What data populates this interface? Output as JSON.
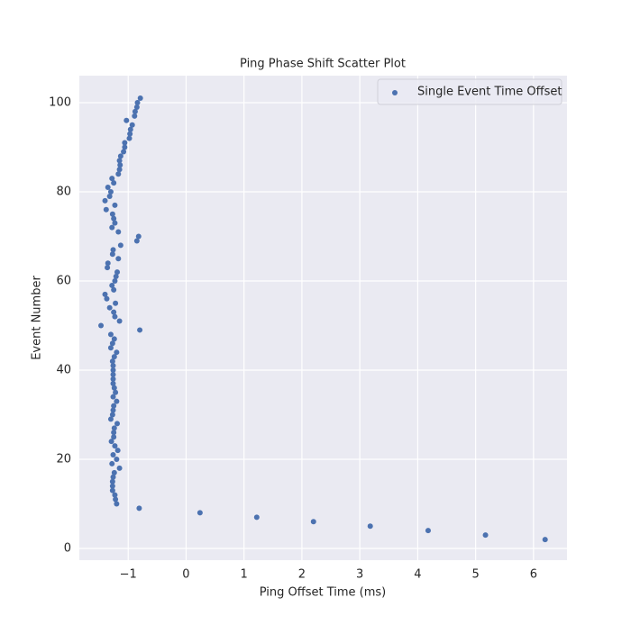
{
  "chart_data": {
    "type": "scatter",
    "title": "Ping Phase Shift Scatter Plot",
    "x_label": "Ping Offset Time (ms)",
    "y_label": "Event Number",
    "x": [
      6.2,
      5.17,
      4.18,
      3.18,
      2.2,
      1.22,
      0.24,
      -0.81,
      -1.2,
      -1.22,
      -1.23,
      -1.27,
      -1.27,
      -1.27,
      -1.26,
      -1.24,
      -1.15,
      -1.28,
      -1.2,
      -1.26,
      -1.18,
      -1.23,
      -1.29,
      -1.25,
      -1.25,
      -1.24,
      -1.19,
      -1.3,
      -1.27,
      -1.26,
      -1.25,
      -1.2,
      -1.26,
      -1.22,
      -1.24,
      -1.26,
      -1.26,
      -1.26,
      -1.26,
      -1.26,
      -1.27,
      -1.24,
      -1.2,
      -1.3,
      -1.27,
      -1.24,
      -1.3,
      -0.8,
      -1.47,
      -1.15,
      -1.23,
      -1.25,
      -1.32,
      -1.22,
      -1.37,
      -1.4,
      -1.25,
      -1.28,
      -1.23,
      -1.21,
      -1.19,
      -1.36,
      -1.35,
      -1.17,
      -1.27,
      -1.26,
      -1.13,
      -0.85,
      -0.82,
      -1.17,
      -1.28,
      -1.23,
      -1.25,
      -1.27,
      -1.38,
      -1.23,
      -1.4,
      -1.32,
      -1.3,
      -1.35,
      -1.25,
      -1.28,
      -1.17,
      -1.15,
      -1.14,
      -1.15,
      -1.13,
      -1.08,
      -1.06,
      -1.06,
      -0.98,
      -0.97,
      -0.96,
      -0.93,
      -1.03,
      -0.89,
      -0.88,
      -0.85,
      -0.84,
      -0.79
    ],
    "series": [
      {
        "name": "Single Event Time Offset",
        "color": "#4c72b0",
        "values": [
          2,
          3,
          4,
          5,
          6,
          7,
          8,
          9,
          10,
          11,
          12,
          13,
          14,
          15,
          16,
          17,
          18,
          19,
          20,
          21,
          22,
          23,
          24,
          25,
          26,
          27,
          28,
          29,
          30,
          31,
          32,
          33,
          34,
          35,
          36,
          37,
          38,
          39,
          40,
          41,
          42,
          43,
          44,
          45,
          46,
          47,
          48,
          49,
          50,
          51,
          52,
          53,
          54,
          55,
          56,
          57,
          58,
          59,
          60,
          61,
          62,
          63,
          64,
          65,
          66,
          67,
          68,
          69,
          70,
          71,
          72,
          73,
          74,
          75,
          76,
          77,
          78,
          79,
          80,
          81,
          82,
          83,
          84,
          85,
          86,
          87,
          88,
          89,
          90,
          91,
          92,
          93,
          94,
          95,
          96,
          97,
          98,
          99,
          100,
          101
        ]
      }
    ],
    "xlim": [
      -1.844,
      6.578
    ],
    "ylim": [
      -2.63,
      106.06
    ],
    "xticks": [
      {
        "value": -1,
        "label": "−1"
      },
      0,
      1,
      2,
      3,
      4,
      5,
      6
    ],
    "yticks": [
      0,
      20,
      40,
      60,
      80,
      100
    ],
    "grid": true,
    "legend": "upper right"
  }
}
